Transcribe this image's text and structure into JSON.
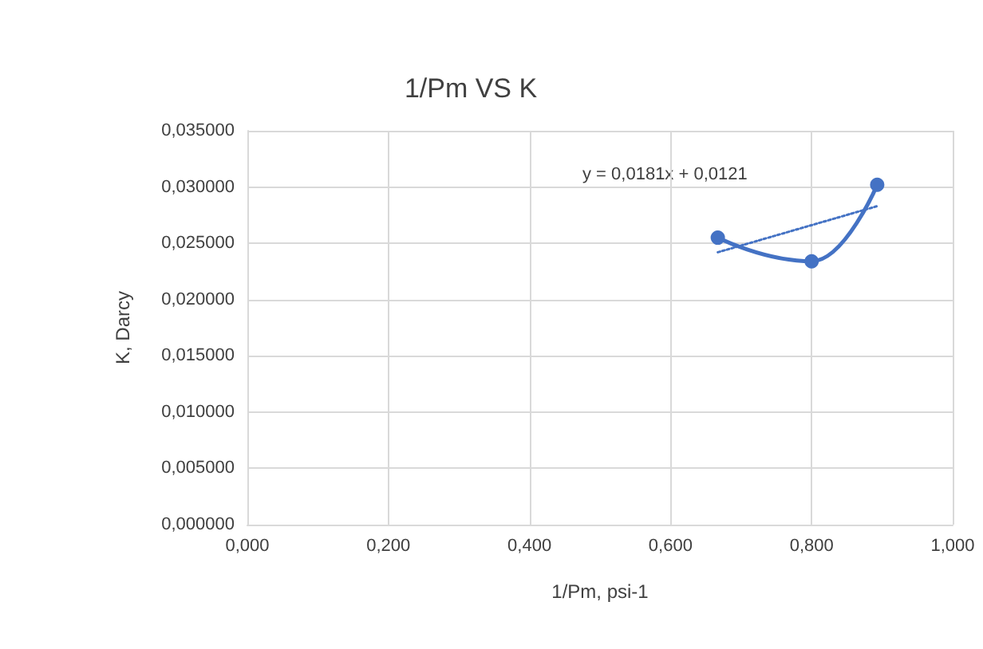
{
  "chart_data": {
    "type": "line",
    "title": "1/Pm VS K",
    "xlabel": "1/Pm, psi-1",
    "ylabel": "K, Darcy",
    "annotations": [
      "y = 0,0181x + 0,0121"
    ],
    "xlim": [
      0,
      1
    ],
    "xticks": [
      {
        "value": 0,
        "label": "0,000"
      },
      {
        "value": 0.2,
        "label": "0,200"
      },
      {
        "value": 0.4,
        "label": "0,400"
      },
      {
        "value": 0.6,
        "label": "0,600"
      },
      {
        "value": 0.8,
        "label": "0,800"
      },
      {
        "value": 1,
        "label": "1,000"
      }
    ],
    "ylim": [
      0,
      0.035
    ],
    "yticks": [
      {
        "value": 0,
        "label": "0,000000"
      },
      {
        "value": 0.005,
        "label": "0,005000"
      },
      {
        "value": 0.01,
        "label": "0,010000"
      },
      {
        "value": 0.015,
        "label": "0,015000"
      },
      {
        "value": 0.02,
        "label": "0,020000"
      },
      {
        "value": 0.025,
        "label": "0,025000"
      },
      {
        "value": 0.03,
        "label": "0,030000"
      },
      {
        "value": 0.035,
        "label": "0,035000"
      }
    ],
    "grid": true,
    "marker": "circle",
    "line_style": "solid",
    "series": [
      {
        "color": "#4472c4",
        "x": [
          0.667,
          0.8,
          0.893
        ],
        "values": [
          0.0255,
          0.0234,
          0.0302
        ]
      },
      {
        "color": "#4472c4",
        "x": [
          0.667,
          0.893
        ],
        "values": [
          0.0242,
          0.0283
        ],
        "marker": "none",
        "line_style": "dotted"
      }
    ]
  }
}
